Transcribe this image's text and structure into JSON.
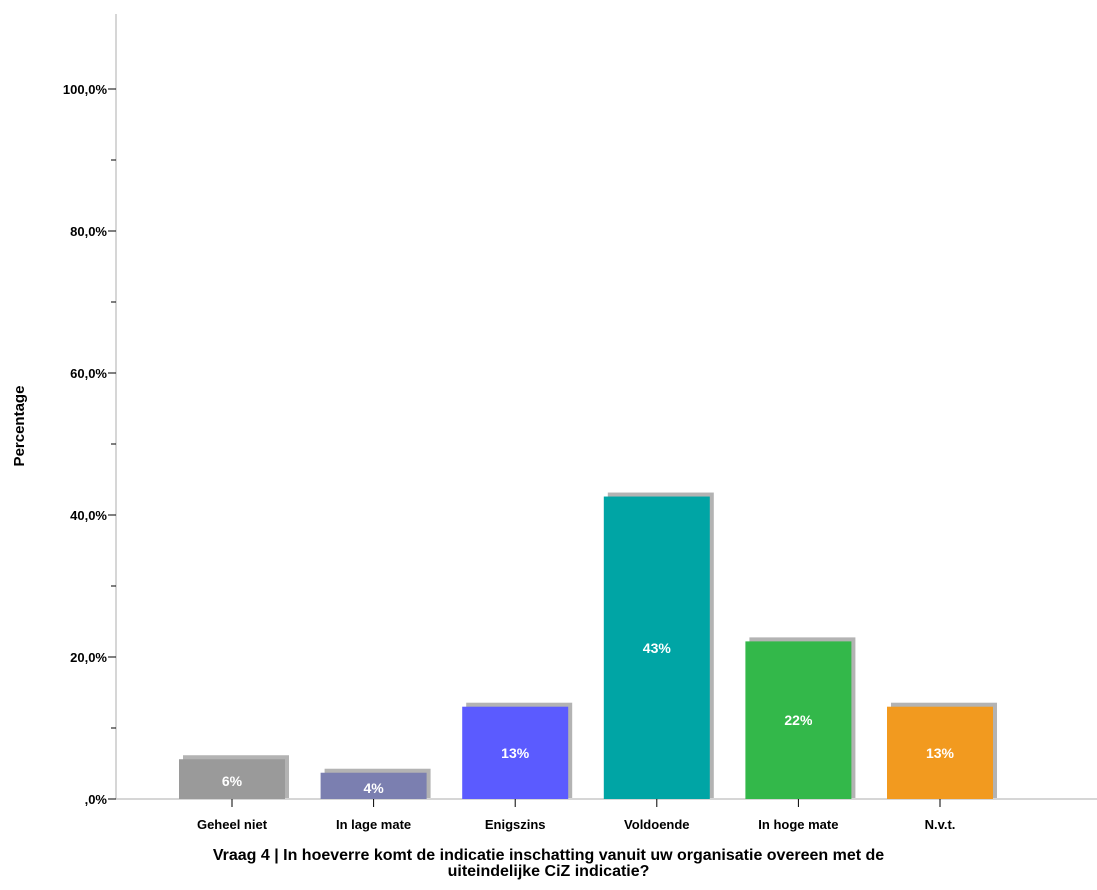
{
  "chart_data": {
    "type": "bar",
    "categories": [
      "Geheel niet",
      "In lage mate",
      "Enigszins",
      "Voldoende",
      "In hoge mate",
      "N.v.t."
    ],
    "values": [
      5.6,
      3.7,
      13,
      42.6,
      22.2,
      13
    ],
    "bar_labels": [
      "6%",
      "4%",
      "13%",
      "43%",
      "22%",
      "13%"
    ],
    "colors": [
      "#9a9a9a",
      "#7b7fb0",
      "#5b5bff",
      "#00a5a5",
      "#33b84a",
      "#f29a1f"
    ],
    "ylabel": "Percentage",
    "xlabel_lines": [
      "Vraag 4 | In hoeverre komt de indicatie inschatting vanuit uw organisatie overeen met de",
      "uiteindelijke CiZ indicatie?"
    ],
    "ylim": [
      0,
      110
    ],
    "y_ticks": [
      0,
      20,
      40,
      60,
      80,
      100
    ],
    "y_tick_labels": [
      ",0%",
      "20,0%",
      "40,0%",
      "60,0%",
      "80,0%",
      "100,0%"
    ],
    "y_minor_ticks": [
      10,
      30,
      50,
      70,
      90
    ],
    "grid": false
  }
}
